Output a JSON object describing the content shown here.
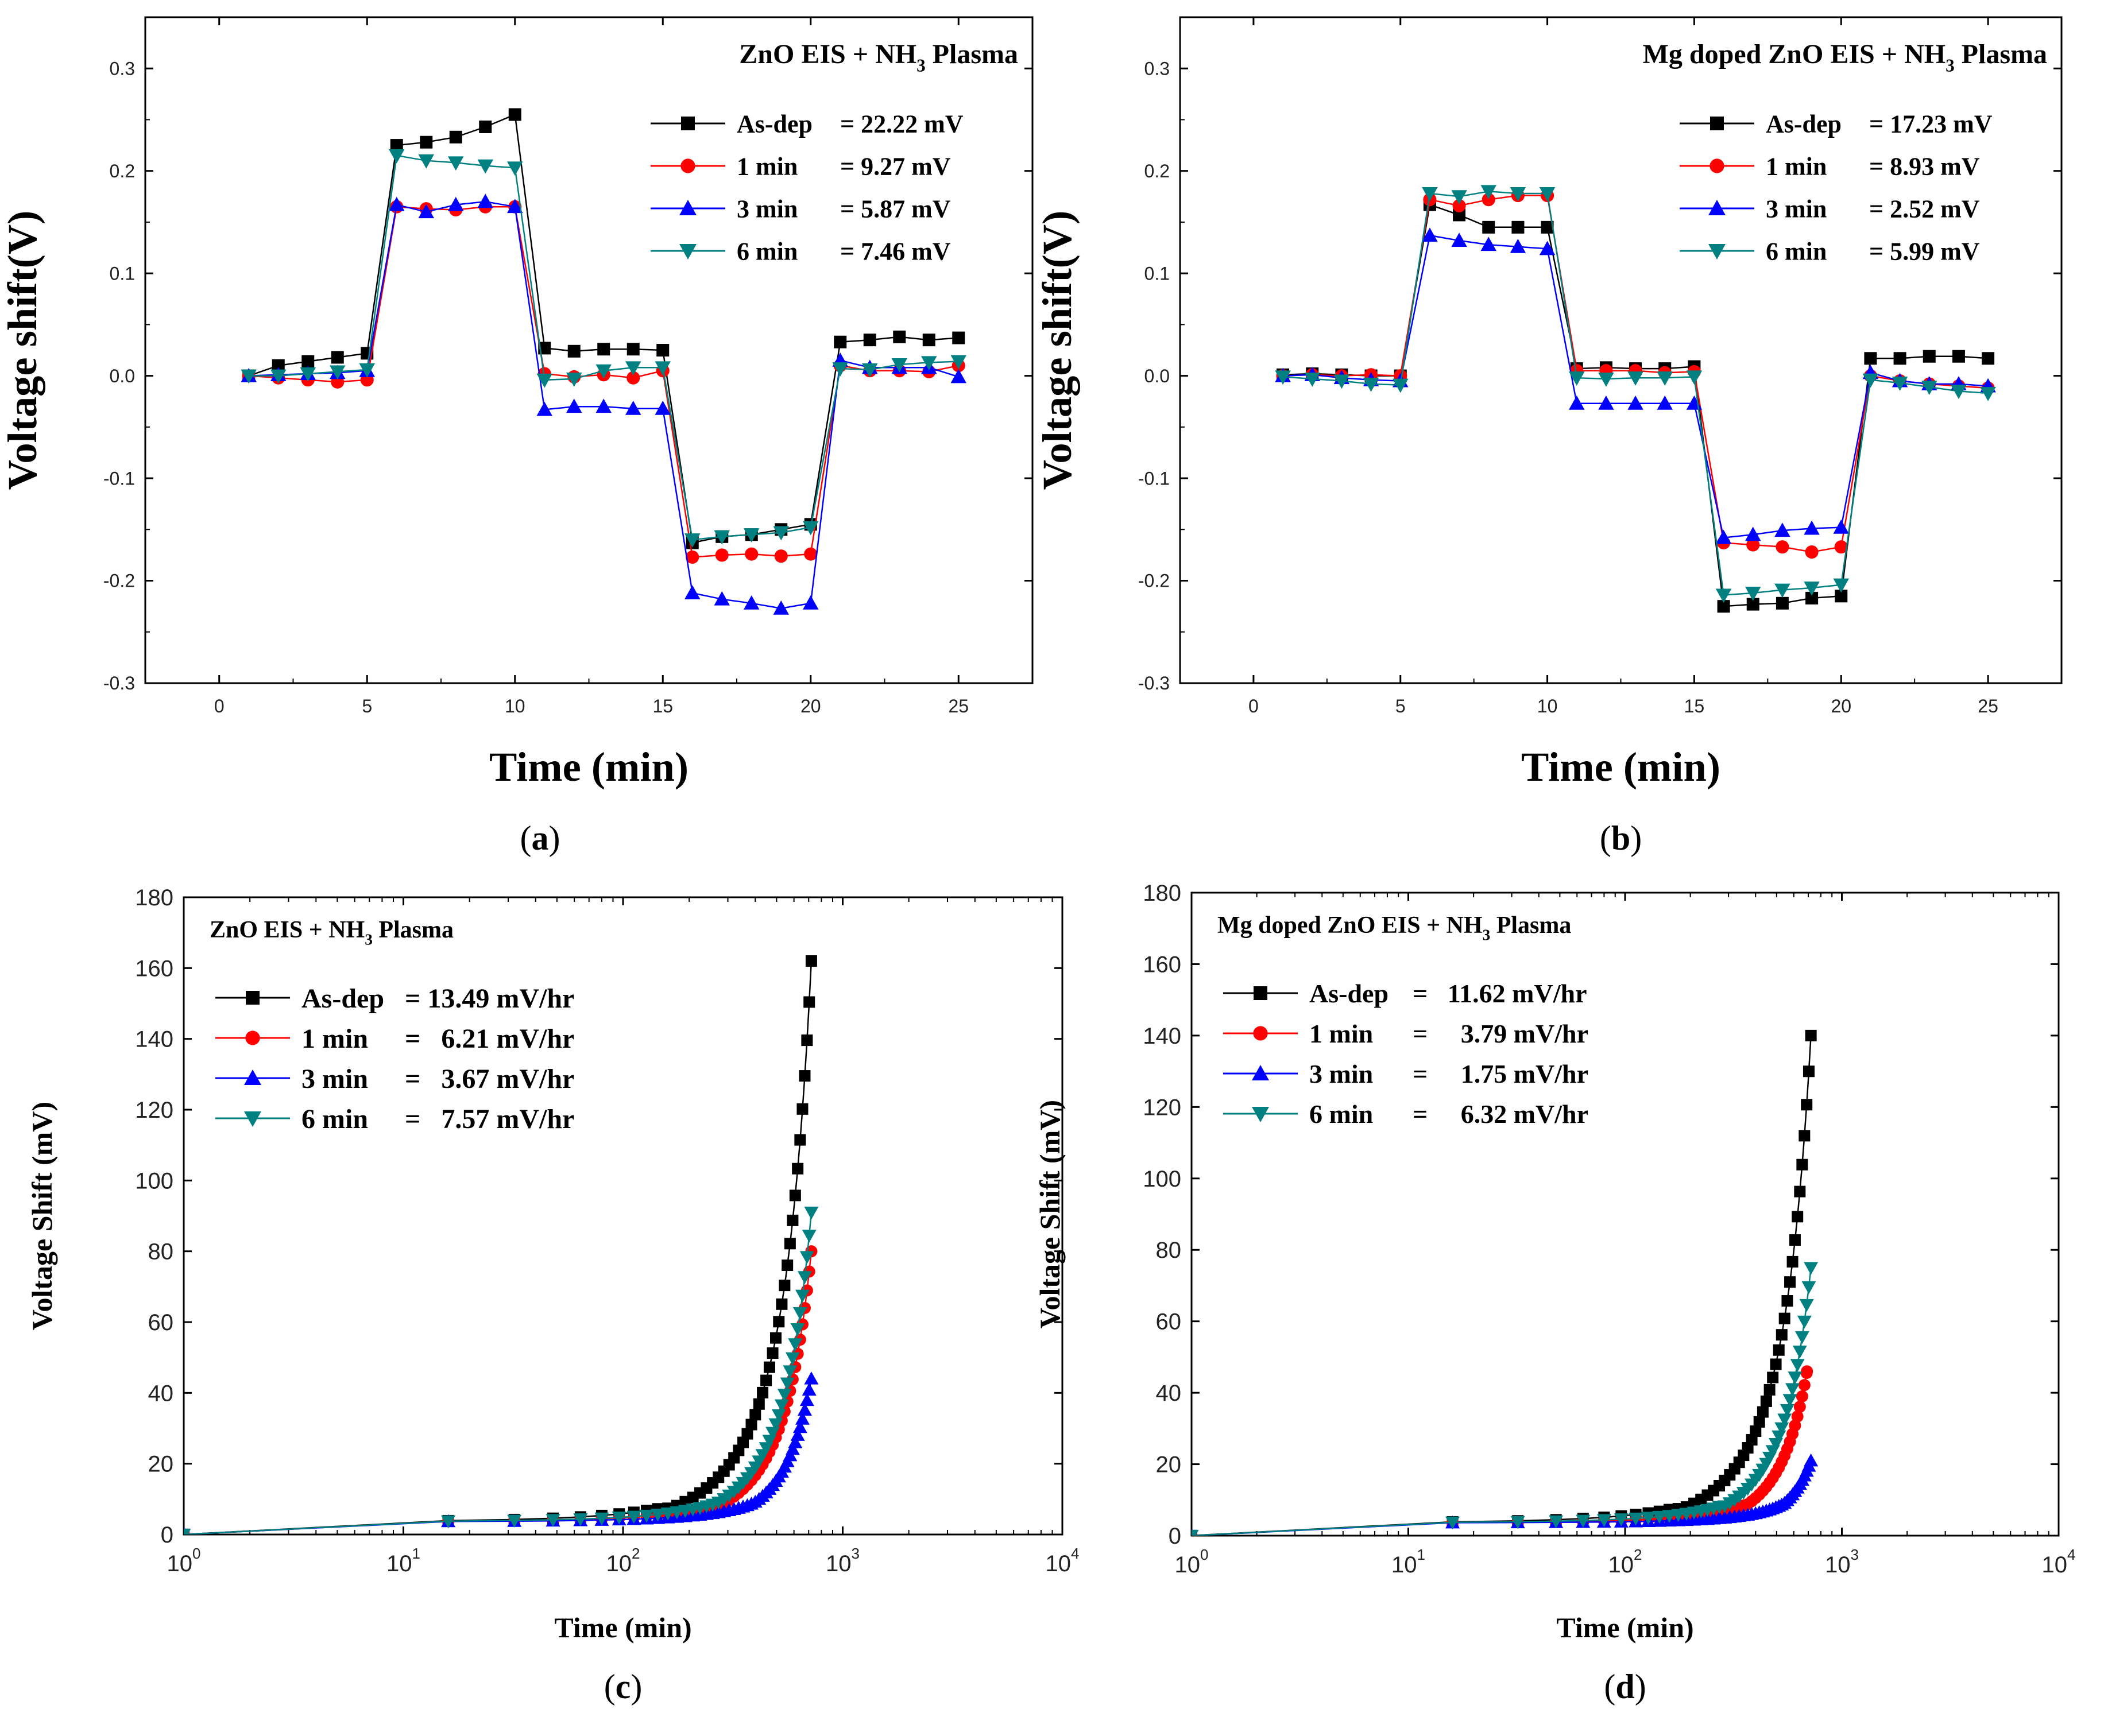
{
  "chart_data": [
    {
      "id": "a",
      "type": "line",
      "panel_label": "(a)",
      "panel_letter": "a",
      "title": "ZnO EIS + NH3 Plasma",
      "title_main": "ZnO EIS + NH",
      "title_sub": "3",
      "title_end": " Plasma",
      "xlabel": "Time (min)",
      "ylabel": "Voltage shift(V)",
      "xscale": "linear",
      "xlim": [
        -2.5,
        27.5
      ],
      "ylim": [
        -0.3,
        0.35
      ],
      "xticks": [
        0,
        5,
        10,
        15,
        20,
        25
      ],
      "xtick_labels": [
        "0",
        "5",
        "10",
        "15",
        "20",
        "25"
      ],
      "yticks": [
        -0.3,
        -0.2,
        -0.1,
        0.0,
        0.1,
        0.2,
        0.3
      ],
      "ytick_labels": [
        "-0.3",
        "-0.2",
        "-0.1",
        "0.0",
        "0.1",
        "0.2",
        "0.3"
      ],
      "legend_position": "top-right",
      "series": [
        {
          "name": "As-dep",
          "label_name": "As-dep",
          "label_value": "= 22.22 mV",
          "color": "#000000",
          "marker": "square",
          "x": [
            1,
            2,
            3,
            4,
            5,
            6,
            7,
            8,
            9,
            10,
            11,
            12,
            13,
            14,
            15,
            16,
            17,
            18,
            19,
            20,
            21,
            22,
            23,
            24,
            25
          ],
          "y": [
            0.0,
            0.01,
            0.014,
            0.018,
            0.022,
            0.225,
            0.228,
            0.233,
            0.243,
            0.255,
            0.027,
            0.024,
            0.026,
            0.026,
            0.025,
            -0.163,
            -0.157,
            -0.155,
            -0.15,
            -0.145,
            0.033,
            0.035,
            0.038,
            0.035,
            0.037
          ]
        },
        {
          "name": "1 min",
          "label_name": "1 min",
          "label_value": "= 9.27 mV",
          "color": "#ff0000",
          "marker": "circle",
          "x": [
            1,
            2,
            3,
            4,
            5,
            6,
            7,
            8,
            9,
            10,
            11,
            12,
            13,
            14,
            15,
            16,
            17,
            18,
            19,
            20,
            21,
            22,
            23,
            24,
            25
          ],
          "y": [
            0.0,
            -0.002,
            -0.004,
            -0.006,
            -0.004,
            0.165,
            0.163,
            0.162,
            0.165,
            0.165,
            0.002,
            -0.001,
            0.001,
            -0.002,
            0.005,
            -0.177,
            -0.175,
            -0.174,
            -0.176,
            -0.174,
            0.01,
            0.005,
            0.005,
            0.004,
            0.01
          ]
        },
        {
          "name": "3 min",
          "label_name": "3 min",
          "label_value": "= 5.87 mV",
          "color": "#0000ff",
          "marker": "triangle-up",
          "x": [
            1,
            2,
            3,
            4,
            5,
            6,
            7,
            8,
            9,
            10,
            11,
            12,
            13,
            14,
            15,
            16,
            17,
            18,
            19,
            20,
            21,
            22,
            23,
            24,
            25
          ],
          "y": [
            0.0,
            0.001,
            0.002,
            0.003,
            0.005,
            0.167,
            0.16,
            0.167,
            0.17,
            0.165,
            -0.033,
            -0.03,
            -0.03,
            -0.032,
            -0.032,
            -0.212,
            -0.218,
            -0.222,
            -0.227,
            -0.222,
            0.015,
            0.008,
            0.008,
            0.008,
            -0.001
          ]
        },
        {
          "name": "6 min",
          "label_name": "6 min",
          "label_value": "= 7.46 mV",
          "color": "#008080",
          "marker": "triangle-down",
          "x": [
            1,
            2,
            3,
            4,
            5,
            6,
            7,
            8,
            9,
            10,
            11,
            12,
            13,
            14,
            15,
            16,
            17,
            18,
            19,
            20,
            21,
            22,
            23,
            24,
            25
          ],
          "y": [
            0.0,
            0.0,
            0.002,
            0.004,
            0.006,
            0.215,
            0.21,
            0.208,
            0.205,
            0.203,
            -0.004,
            -0.003,
            0.005,
            0.008,
            0.008,
            -0.16,
            -0.157,
            -0.155,
            -0.153,
            -0.148,
            0.007,
            0.006,
            0.011,
            0.013,
            0.014
          ]
        }
      ]
    },
    {
      "id": "b",
      "type": "line",
      "panel_label": "(b)",
      "panel_letter": "b",
      "title": "Mg doped ZnO EIS + NH3 Plasma",
      "title_main": "Mg doped ZnO EIS + NH",
      "title_sub": "3",
      "title_end": " Plasma",
      "xlabel": "Time (min)",
      "ylabel": "Voltage shift(V)",
      "xscale": "linear",
      "xlim": [
        -2.5,
        27.5
      ],
      "ylim": [
        -0.3,
        0.35
      ],
      "xticks": [
        0,
        5,
        10,
        15,
        20,
        25
      ],
      "xtick_labels": [
        "0",
        "5",
        "10",
        "15",
        "20",
        "25"
      ],
      "yticks": [
        -0.3,
        -0.2,
        -0.1,
        0.0,
        0.1,
        0.2,
        0.3
      ],
      "ytick_labels": [
        "-0.3",
        "-0.2",
        "-0.1",
        "0.0",
        "0.1",
        "0.2",
        "0.3"
      ],
      "legend_position": "top-right",
      "series": [
        {
          "name": "As-dep",
          "label_name": "As-dep",
          "label_value": "= 17.23 mV",
          "color": "#000000",
          "marker": "square",
          "x": [
            1,
            2,
            3,
            4,
            5,
            6,
            7,
            8,
            9,
            10,
            11,
            12,
            13,
            14,
            15,
            16,
            17,
            18,
            19,
            20,
            21,
            22,
            23,
            24,
            25
          ],
          "y": [
            0.001,
            0.002,
            0.001,
            0.0,
            0.0,
            0.167,
            0.157,
            0.145,
            0.145,
            0.145,
            0.007,
            0.008,
            0.007,
            0.007,
            0.009,
            -0.225,
            -0.223,
            -0.222,
            -0.217,
            -0.215,
            0.017,
            0.017,
            0.019,
            0.019,
            0.017
          ]
        },
        {
          "name": "1 min",
          "label_name": "1 min",
          "label_value": "= 8.93 mV",
          "color": "#ff0000",
          "marker": "circle",
          "x": [
            1,
            2,
            3,
            4,
            5,
            6,
            7,
            8,
            9,
            10,
            11,
            12,
            13,
            14,
            15,
            16,
            17,
            18,
            19,
            20,
            21,
            22,
            23,
            24,
            25
          ],
          "y": [
            0.0,
            0.001,
            0.0,
            0.001,
            0.0,
            0.172,
            0.166,
            0.172,
            0.176,
            0.176,
            0.005,
            0.005,
            0.005,
            0.003,
            0.004,
            -0.163,
            -0.165,
            -0.167,
            -0.172,
            -0.167,
            0.0,
            -0.005,
            -0.008,
            -0.01,
            -0.012
          ]
        },
        {
          "name": "3 min",
          "label_name": "3 min",
          "label_value": "= 2.52 mV",
          "color": "#0000ff",
          "marker": "triangle-up",
          "x": [
            1,
            2,
            3,
            4,
            5,
            6,
            7,
            8,
            9,
            10,
            11,
            12,
            13,
            14,
            15,
            16,
            17,
            18,
            19,
            20,
            21,
            22,
            23,
            24,
            25
          ],
          "y": [
            0.0,
            0.001,
            -0.002,
            -0.004,
            -0.005,
            0.137,
            0.132,
            0.128,
            0.126,
            0.124,
            -0.027,
            -0.027,
            -0.027,
            -0.027,
            -0.027,
            -0.158,
            -0.155,
            -0.151,
            -0.149,
            -0.148,
            0.003,
            -0.005,
            -0.008,
            -0.008,
            -0.01
          ]
        },
        {
          "name": "6 min",
          "label_name": "6 min",
          "label_value": "= 5.99 mV",
          "color": "#008080",
          "marker": "triangle-down",
          "x": [
            1,
            2,
            3,
            4,
            5,
            6,
            7,
            8,
            9,
            10,
            11,
            12,
            13,
            14,
            15,
            16,
            17,
            18,
            19,
            20,
            21,
            22,
            23,
            24,
            25
          ],
          "y": [
            -0.001,
            -0.003,
            -0.005,
            -0.008,
            -0.009,
            0.178,
            0.175,
            0.18,
            0.178,
            0.178,
            -0.002,
            -0.003,
            -0.002,
            -0.002,
            -0.001,
            -0.214,
            -0.212,
            -0.209,
            -0.207,
            -0.204,
            -0.004,
            -0.007,
            -0.011,
            -0.015,
            -0.017
          ]
        }
      ]
    },
    {
      "id": "c",
      "type": "line",
      "panel_label": "(c)",
      "panel_letter": "c",
      "title": "ZnO EIS + NH3 Plasma",
      "title_main": "ZnO EIS + NH",
      "title_sub": "3",
      "title_end": " Plasma",
      "xlabel": "Time (min)",
      "ylabel": "Voltage Shift (mV)",
      "xscale": "log",
      "xlim": [
        1,
        10000
      ],
      "ylim": [
        0,
        180
      ],
      "xticks": [
        1,
        10,
        100,
        1000,
        10000
      ],
      "xtick_labels": [
        {
          "base": "10",
          "exp": "0"
        },
        {
          "base": "10",
          "exp": "1"
        },
        {
          "base": "10",
          "exp": "2"
        },
        {
          "base": "10",
          "exp": "3"
        },
        {
          "base": "10",
          "exp": "4"
        }
      ],
      "yticks": [
        0,
        20,
        40,
        60,
        80,
        100,
        120,
        140,
        160,
        180
      ],
      "ytick_labels": [
        "0",
        "20",
        "40",
        "60",
        "80",
        "100",
        "120",
        "140",
        "160",
        "180"
      ],
      "legend_position": "top-left",
      "series": [
        {
          "name": "As-dep",
          "label_name": "As-dep",
          "label_value": "= 13.49 mV/hr",
          "color": "#000000",
          "marker": "square",
          "amp": 162,
          "t0": 4.0,
          "rate": 0.0,
          "cap": 720
        },
        {
          "name": "1 min",
          "label_name": "1 min",
          "label_value": "=   6.21 mV/hr",
          "color": "#ff0000",
          "marker": "circle",
          "amp": 80,
          "t0": 4.2,
          "rate": 0.0,
          "cap": 720
        },
        {
          "name": "3 min",
          "label_name": "3 min",
          "label_value": "=   3.67 mV/hr",
          "color": "#0000ff",
          "marker": "triangle-up",
          "amp": 44,
          "t0": 4.5,
          "rate": 0.0,
          "cap": 720
        },
        {
          "name": "6 min",
          "label_name": "6 min",
          "label_value": "=   7.57 mV/hr",
          "color": "#008080",
          "marker": "triangle-down",
          "amp": 91,
          "t0": 4.2,
          "rate": 0.0,
          "cap": 720
        }
      ]
    },
    {
      "id": "d",
      "type": "line",
      "panel_label": "(d)",
      "panel_letter": "d",
      "title": "Mg doped ZnO EIS + NH3 Plasma",
      "title_main": "Mg doped ZnO EIS + NH",
      "title_sub": "3",
      "title_end": " Plasma",
      "xlabel": "Time (min)",
      "ylabel": "Voltage Shift (mV)",
      "xscale": "log",
      "xlim": [
        1,
        10000
      ],
      "ylim": [
        0,
        180
      ],
      "xticks": [
        1,
        10,
        100,
        1000,
        10000
      ],
      "xtick_labels": [
        {
          "base": "10",
          "exp": "0"
        },
        {
          "base": "10",
          "exp": "1"
        },
        {
          "base": "10",
          "exp": "2"
        },
        {
          "base": "10",
          "exp": "3"
        },
        {
          "base": "10",
          "exp": "4"
        }
      ],
      "yticks": [
        0,
        20,
        40,
        60,
        80,
        100,
        120,
        140,
        160,
        180
      ],
      "ytick_labels": [
        "0",
        "20",
        "40",
        "60",
        "80",
        "100",
        "120",
        "140",
        "160",
        "180"
      ],
      "legend_position": "top-left",
      "series": [
        {
          "name": "As-dep",
          "label_name": "As-dep",
          "label_value": "=   11.62 mV/hr",
          "color": "#000000",
          "marker": "square",
          "amp": 140,
          "t0": 4.0,
          "rate": 0.0,
          "cap": 720
        },
        {
          "name": "1 min",
          "label_name": "1 min",
          "label_value": "=     3.79 mV/hr",
          "color": "#ff0000",
          "marker": "circle",
          "amp": 46,
          "t0": 4.0,
          "rate": 0.0,
          "cap": 690
        },
        {
          "name": "3 min",
          "label_name": "3 min",
          "label_value": "=     1.75 mV/hr",
          "color": "#0000ff",
          "marker": "triangle-up",
          "amp": 21,
          "t0": 4.5,
          "rate": 0.0,
          "cap": 720
        },
        {
          "name": "6 min",
          "label_name": "6 min",
          "label_value": "=     6.32 mV/hr",
          "color": "#008080",
          "marker": "triangle-down",
          "amp": 75,
          "t0": 4.0,
          "rate": 0.0,
          "cap": 720
        }
      ]
    }
  ]
}
